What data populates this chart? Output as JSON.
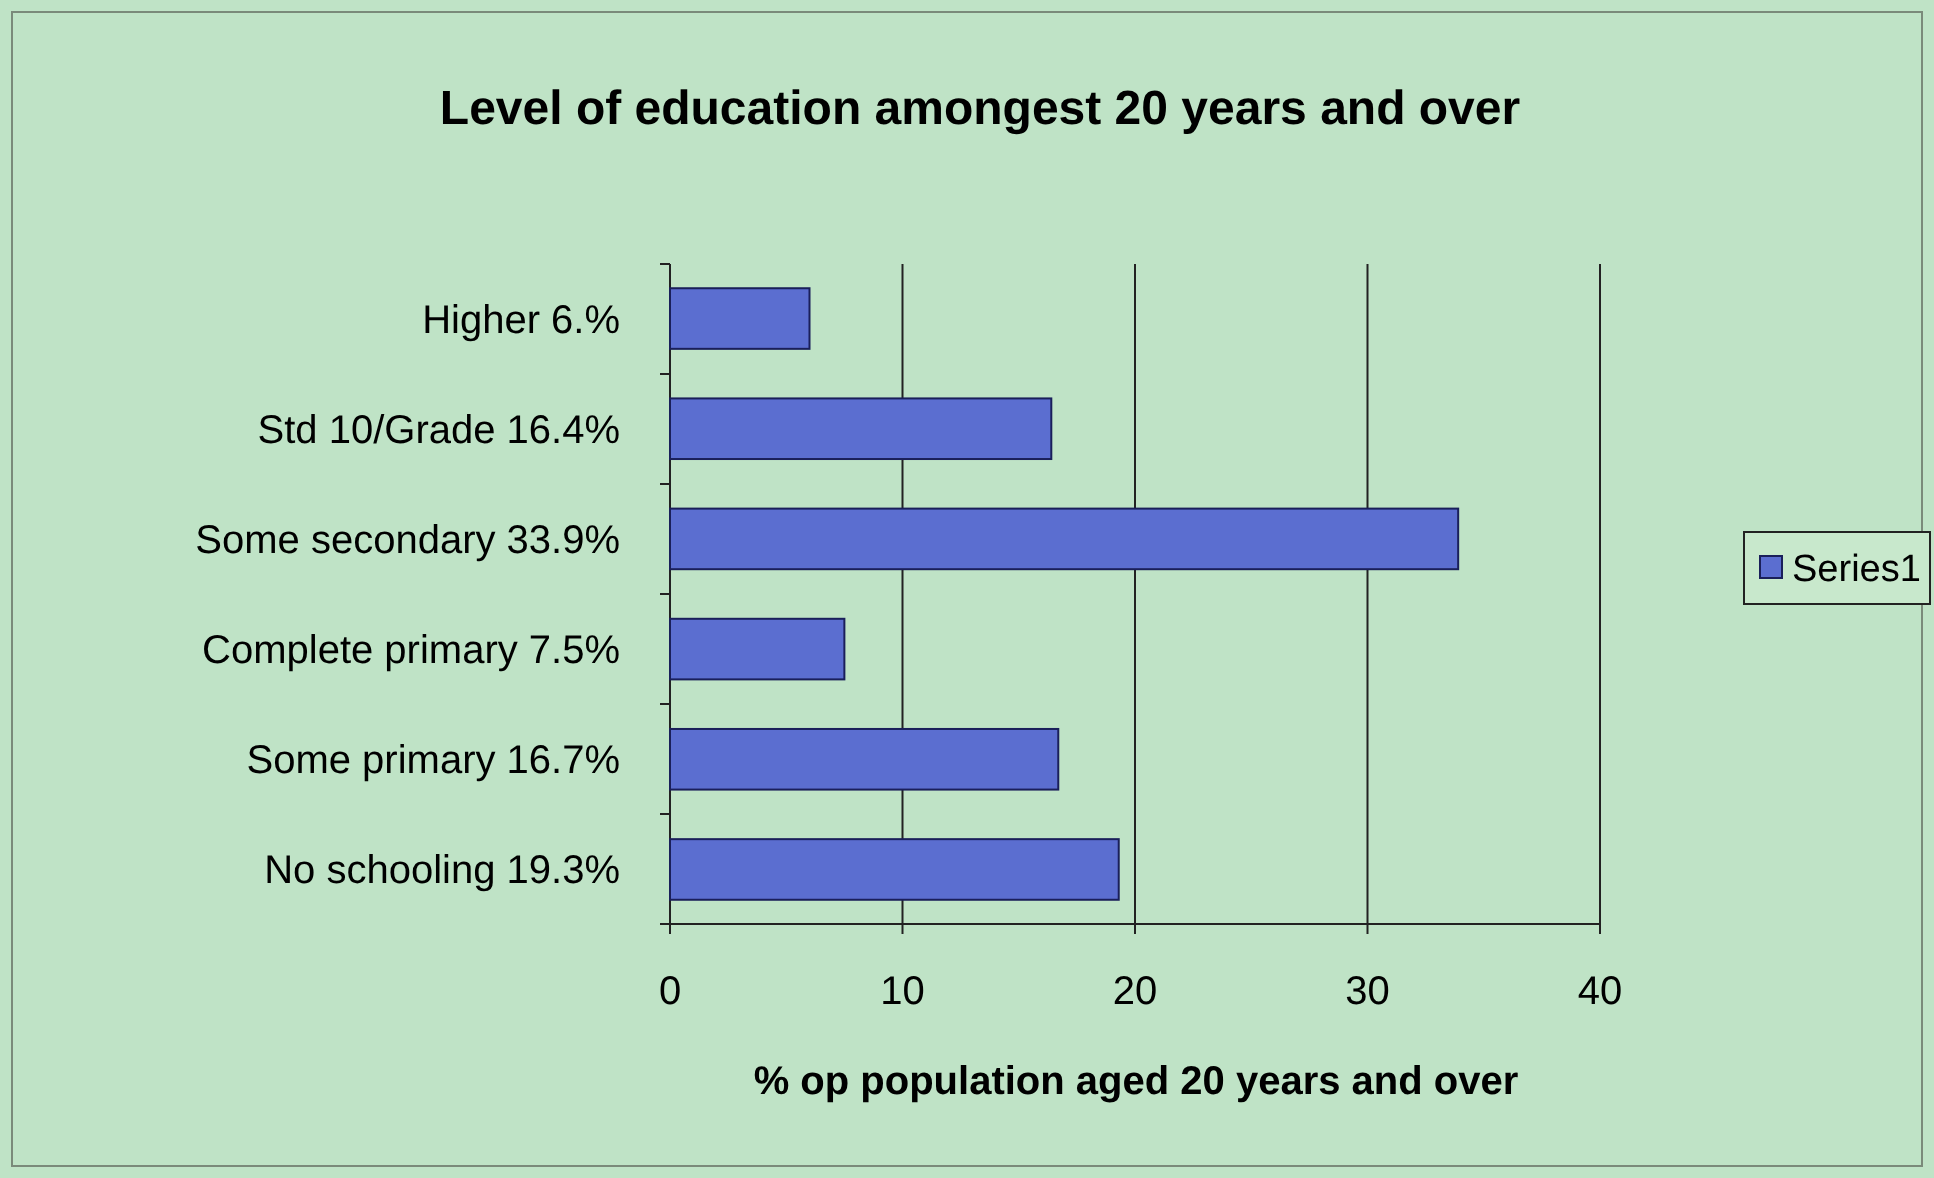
{
  "chart_data": {
    "type": "bar",
    "orientation": "horizontal",
    "title": "Level of education amongest 20 years and over",
    "xlabel": "% op population aged 20 years and over",
    "categories": [
      "Higher 6.%",
      "Std 10/Grade 16.4%",
      "Some secondary 33.9%",
      "Complete primary 7.5%",
      "Some primary 16.7%",
      "No schooling 19.3%"
    ],
    "series": [
      {
        "name": "Series1",
        "color": "#5b6ed0",
        "values": [
          6.0,
          16.4,
          33.9,
          7.5,
          16.7,
          19.3
        ]
      }
    ],
    "xlim": [
      0,
      40
    ],
    "xticks": [
      0,
      10,
      20,
      30,
      40
    ],
    "grid": "x",
    "legend": "right"
  }
}
